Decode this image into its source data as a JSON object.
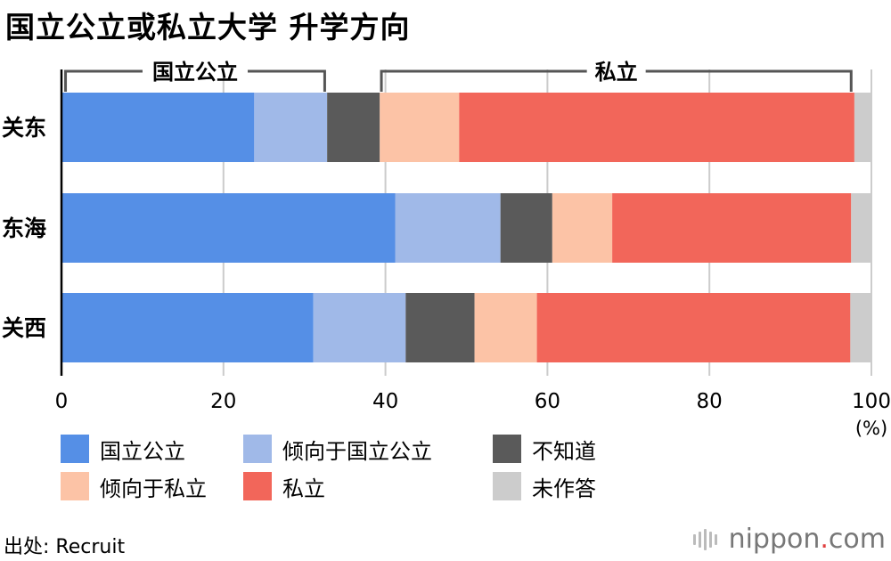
{
  "title": "国立公立或私立大学 升学方向",
  "chart_data": {
    "type": "bar",
    "orientation": "horizontal",
    "stacked": true,
    "categories": [
      "关东",
      "东海",
      "关西"
    ],
    "series": [
      {
        "name": "国立公立",
        "color": "#558fe6",
        "values": [
          23.8,
          41.2,
          31.1
        ]
      },
      {
        "name": "倾向于国立公立",
        "color": "#a0b9e8",
        "values": [
          9.0,
          13.0,
          11.4
        ]
      },
      {
        "name": "不知道",
        "color": "#5a5a5a",
        "values": [
          6.5,
          6.4,
          8.5
        ]
      },
      {
        "name": "倾向于私立",
        "color": "#fcc3a6",
        "values": [
          9.8,
          7.4,
          7.7
        ]
      },
      {
        "name": "私立",
        "color": "#f2665a",
        "values": [
          48.8,
          29.5,
          38.7
        ]
      },
      {
        "name": "未作答",
        "color": "#cccccc",
        "values": [
          2.1,
          2.5,
          2.6
        ]
      }
    ],
    "xlim": [
      0,
      100
    ],
    "xticks": [
      0,
      20,
      40,
      60,
      80,
      100
    ],
    "xunit": "(%)",
    "grid": true,
    "legend_position": "bottom",
    "brackets": [
      {
        "label": "国立公立",
        "range": [
          0.5,
          32.5
        ]
      },
      {
        "label": "私立",
        "range": [
          39.5,
          97.5
        ]
      }
    ]
  },
  "source": {
    "label": "出处:",
    "value": "Recruit"
  },
  "brand": {
    "name": "nippon",
    "dot": ".",
    "suffix": "com"
  }
}
